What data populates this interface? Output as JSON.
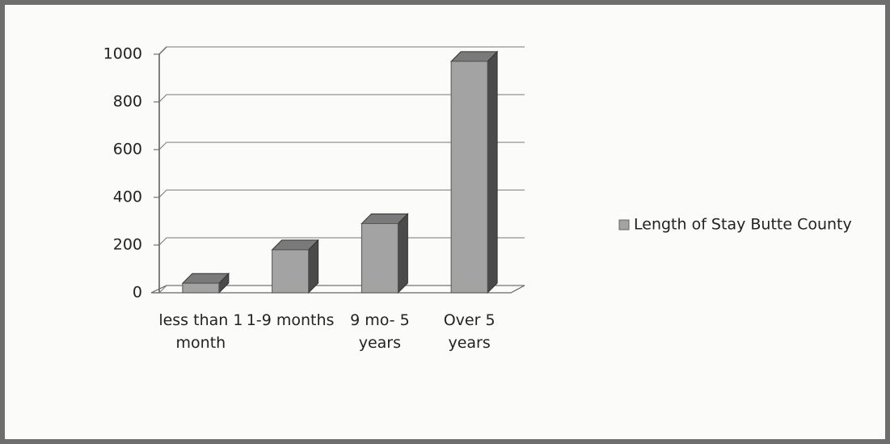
{
  "chart_data": {
    "type": "bar3d",
    "categories": [
      "less than 1 month",
      "1-9 months",
      "9 mo- 5 years",
      "Over 5 years"
    ],
    "series": [
      {
        "name": "Length of Stay Butte County",
        "color": "#a3a3a3",
        "values": [
          40,
          180,
          290,
          970
        ]
      }
    ],
    "ylim": [
      0,
      1000
    ],
    "yticks": [
      0,
      200,
      400,
      600,
      800,
      1000
    ],
    "grid": true,
    "legend": "right"
  }
}
